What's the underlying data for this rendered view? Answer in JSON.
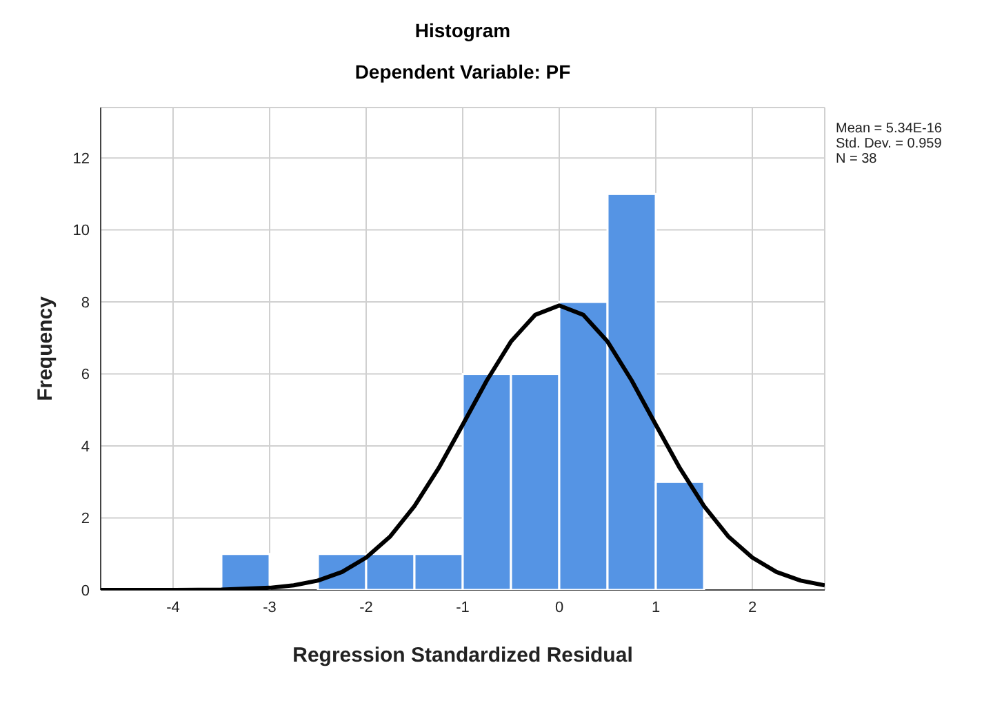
{
  "chart_data": {
    "type": "histogram",
    "title": "Histogram",
    "subtitle": "Dependent Variable: PF",
    "xlabel": "Regression Standardized Residual",
    "ylabel": "Frequency",
    "annotations": [
      "Mean = 5.34E-16",
      "Std. Dev. = 0.959",
      "N = 38"
    ],
    "bins": [
      -3.5,
      -3,
      -2.5,
      -2,
      -1.5,
      -1,
      -0.5,
      0,
      0.5,
      1,
      1.5
    ],
    "values": [
      1,
      0,
      1,
      1,
      1,
      6,
      6,
      8,
      11,
      3
    ],
    "color": "#5594e4",
    "series": [
      {
        "type": "line",
        "color": "#000000",
        "x": [
          -4.75,
          -4.5,
          -4,
          -3.5,
          -3,
          -2.75,
          -2.5,
          -2.25,
          -2,
          -1.75,
          -1.5,
          -1.25,
          -1,
          -0.75,
          -0.5,
          -0.25,
          0,
          0.25,
          0.5,
          0.75,
          1,
          1.25,
          1.5,
          1.75,
          2,
          2.25,
          2.5,
          2.75
        ],
        "values": [
          0,
          0,
          0,
          0.01,
          0.06,
          0.13,
          0.26,
          0.5,
          0.9,
          1.49,
          2.33,
          3.38,
          4.59,
          5.82,
          6.9,
          7.64,
          7.9,
          7.64,
          6.9,
          5.82,
          4.59,
          3.38,
          2.33,
          1.49,
          0.9,
          0.5,
          0.26,
          0.13
        ]
      }
    ],
    "xlim": [
      -4.75,
      2.75
    ],
    "xticks": [
      -4,
      -3,
      -2,
      -1,
      0,
      1,
      2
    ],
    "ylim": [
      0,
      13.4
    ],
    "yticks": [
      0,
      2,
      4,
      6,
      8,
      10,
      12
    ],
    "grid": true,
    "legend": false
  }
}
